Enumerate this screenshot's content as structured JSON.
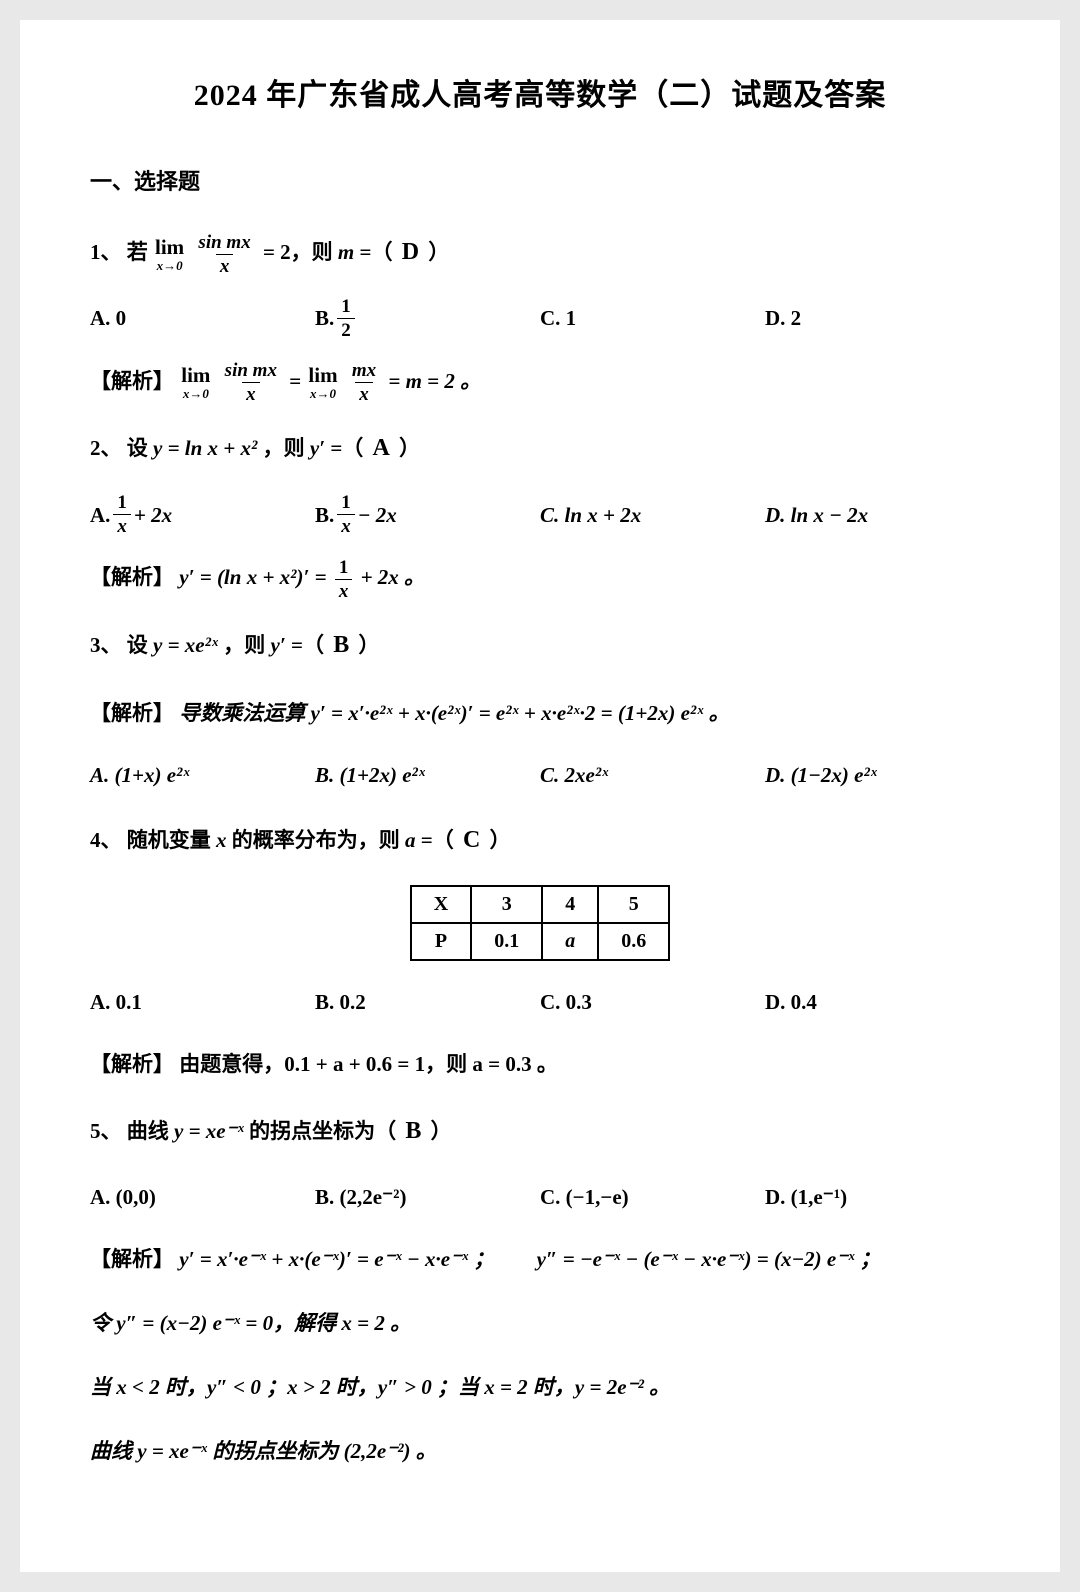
{
  "title": "2024 年广东省成人高考高等数学（二）试题及答案",
  "section1": "一、选择题",
  "q1": {
    "num": "1、",
    "pre": "若 ",
    "lim_top": "lim",
    "lim_bot": "x→0",
    "frac_num": "sin mx",
    "frac_den": "x",
    "eq": " = 2，则 ",
    "mvar": "m",
    "post": " =（ ",
    "ans": "D",
    "close": " ）",
    "A": "A. 0",
    "B_pre": "B. ",
    "B_num": "1",
    "B_den": "2",
    "C": "C. 1",
    "D": "D. 2",
    "sol_label": "【解析】",
    "sol_frac1_num": "sin mx",
    "sol_frac1_den": "x",
    "sol_eq1": " = ",
    "sol_frac2_num": "mx",
    "sol_frac2_den": "x",
    "sol_end": " = m = 2 。"
  },
  "q2": {
    "num": "2、",
    "stem_pre": "设 ",
    "stem_y": "y = ln x + x²",
    "stem_mid": "，则 ",
    "stem_yp": "y′",
    "stem_post": " =（ ",
    "ans": "A",
    "close": " ）",
    "A_pre": "A. ",
    "A_num": "1",
    "A_den": "x",
    "A_post": " + 2x",
    "B_pre": "B. ",
    "B_num": "1",
    "B_den": "x",
    "B_post": " − 2x",
    "C": "C. ln x + 2x",
    "D": "D. ln x − 2x",
    "sol_label": "【解析】",
    "sol_pre": "y′ = (ln x + x²)′ = ",
    "sol_num": "1",
    "sol_den": "x",
    "sol_post": " + 2x 。"
  },
  "q3": {
    "num": "3、",
    "stem_pre": "设 ",
    "stem_y": "y = xe²ˣ",
    "stem_mid": "，则 ",
    "stem_yp": "y′",
    "stem_post": " =（ ",
    "ans": "B",
    "close": " ）",
    "sol_label": "【解析】",
    "sol": "导数乘法运算 y′ = x′·e²ˣ + x·(e²ˣ)′ = e²ˣ + x·e²ˣ·2 = (1+2x) e²ˣ 。",
    "A": "A. (1+x) e²ˣ",
    "B": "B. (1+2x) e²ˣ",
    "C": "C. 2xe²ˣ",
    "D": "D. (1−2x) e²ˣ"
  },
  "q4": {
    "num": "4、",
    "stem_pre": "随机变量 ",
    "stem_x": "x",
    "stem_mid": " 的概率分布为，则 ",
    "stem_a": "a",
    "stem_post": " =（ ",
    "ans": "C",
    "close": " ）",
    "table": {
      "h1": "X",
      "h2": "3",
      "h3": "4",
      "h4": "5",
      "r1": "P",
      "r2": "0.1",
      "r3": "a",
      "r4": "0.6"
    },
    "A": "A. 0.1",
    "B": "B. 0.2",
    "C": "C. 0.3",
    "D": "D. 0.4",
    "sol_label": "【解析】",
    "sol": "由题意得，0.1 + a + 0.6 = 1，则 a = 0.3 。"
  },
  "q5": {
    "num": "5、",
    "stem_pre": "曲线 ",
    "stem_y": "y = xe⁻ˣ",
    "stem_mid": " 的拐点坐标为（ ",
    "ans": "B",
    "close": " ）",
    "A": "A. (0,0)",
    "B": "B. (2,2e⁻²)",
    "C": "C. (−1,−e)",
    "D": "D. (1,e⁻¹)",
    "sol_label": "【解析】",
    "sol1": "y′ = x′·e⁻ˣ + x·(e⁻ˣ)′ = e⁻ˣ − x·e⁻ˣ ；　　y″ = −e⁻ˣ − (e⁻ˣ − x·e⁻ˣ) = (x−2) e⁻ˣ ；",
    "sol2": "令 y″ = (x−2) e⁻ˣ = 0，解得 x = 2 。",
    "sol3": "当 x < 2 时，y″ < 0 ；x > 2 时，y″ > 0 ；当 x = 2 时，y = 2e⁻² 。",
    "sol4": "曲线 y = xe⁻ˣ 的拐点坐标为 (2,2e⁻²) 。"
  }
}
